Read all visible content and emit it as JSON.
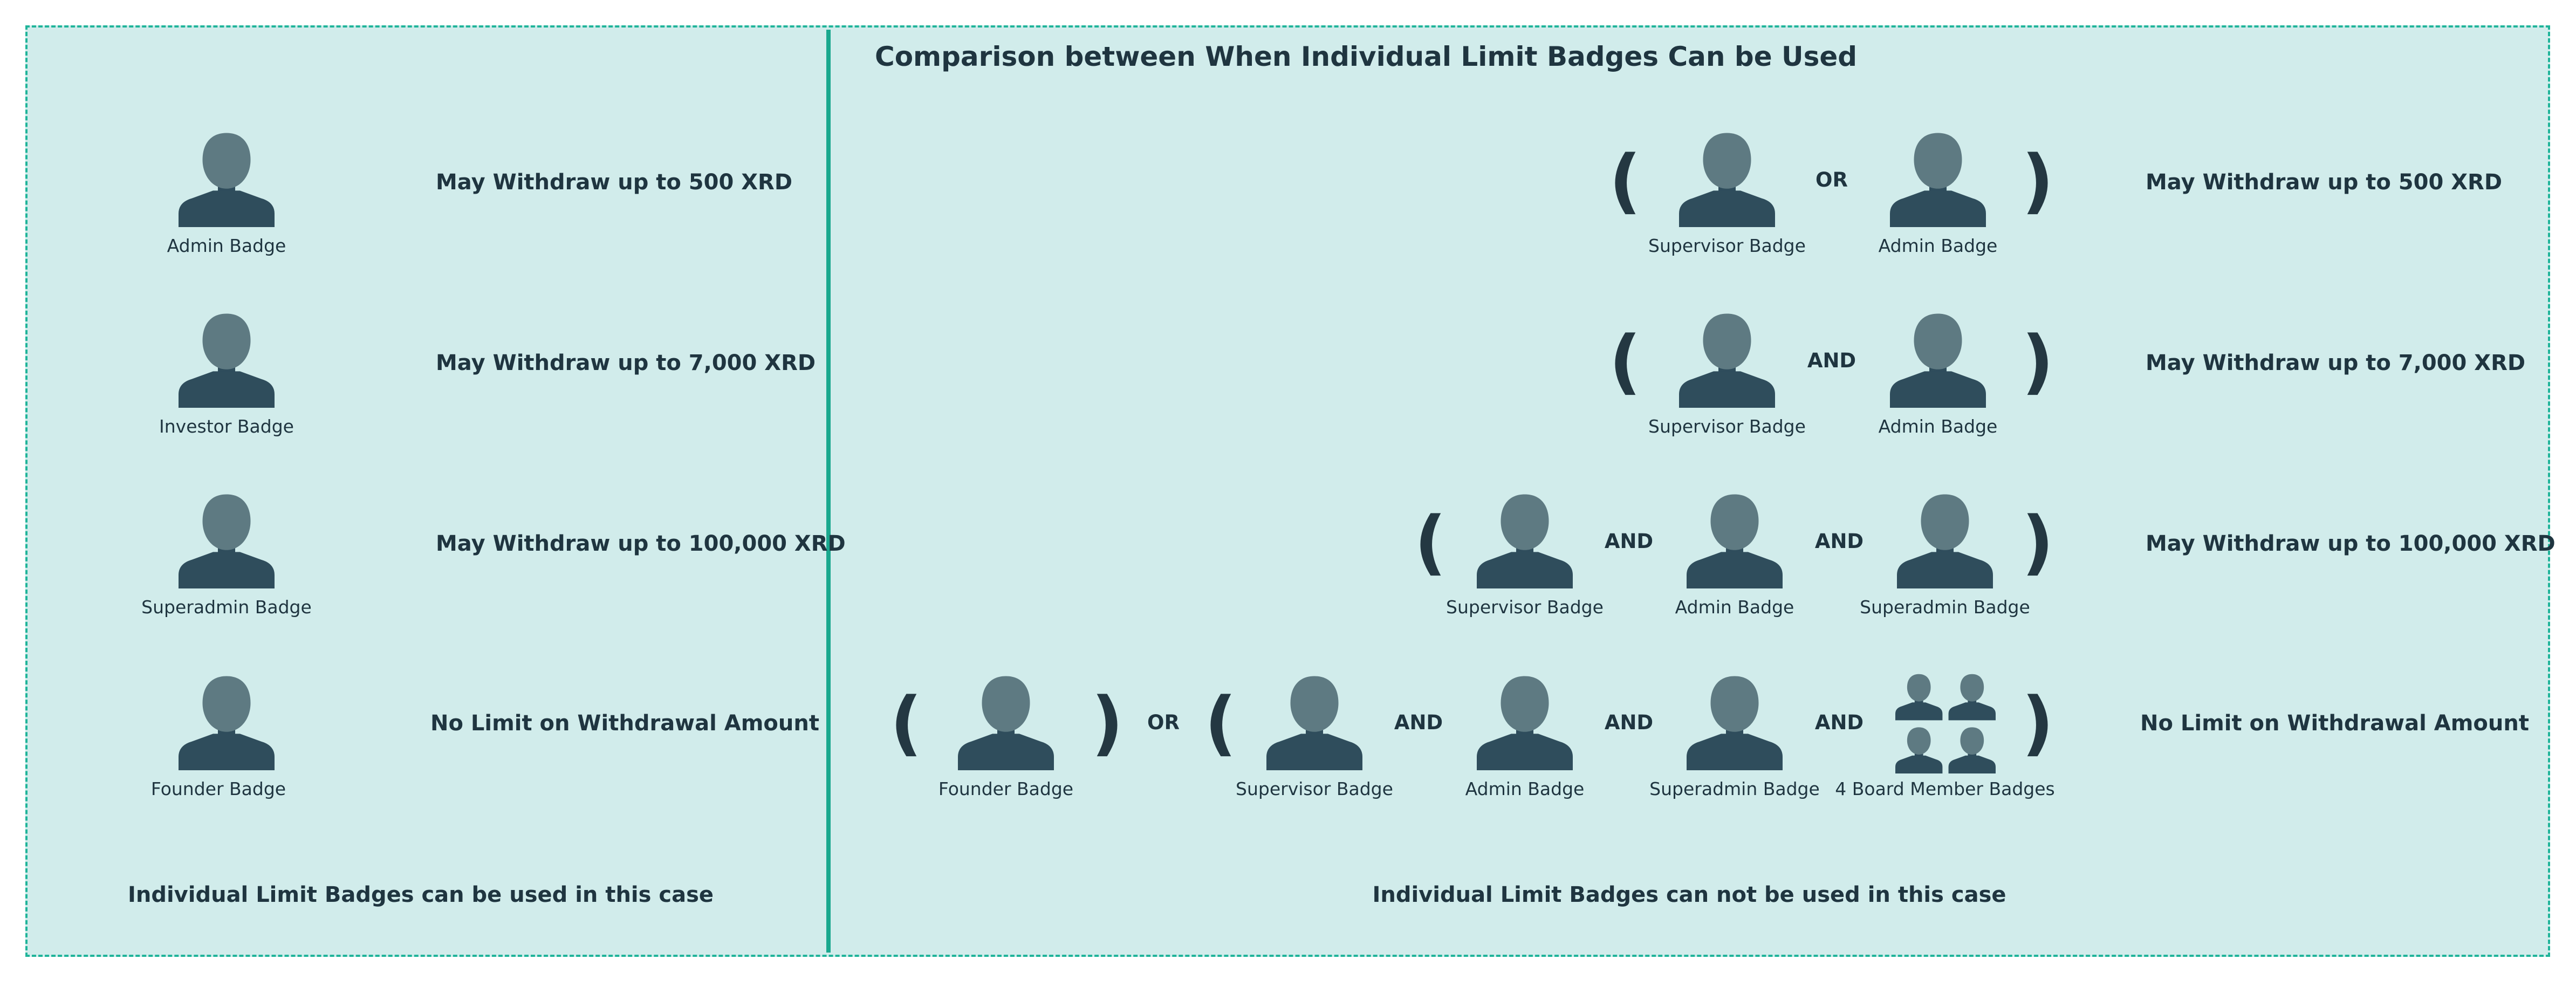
{
  "title": "Comparison between When Individual Limit Badges Can be Used",
  "left_panel": {
    "rows": [
      {
        "badge": "Admin Badge",
        "result": "May Withdraw up to 500 XRD"
      },
      {
        "badge": "Investor Badge",
        "result": "May Withdraw up to 7,000 XRD"
      },
      {
        "badge": "Superadmin Badge",
        "result": "May Withdraw up to 100,000 XRD"
      },
      {
        "badge": "Founder Badge",
        "result": "No Limit on Withdrawal Amount"
      }
    ],
    "caption": "Individual Limit Badges can be used in this case"
  },
  "right_panel": {
    "row1": {
      "badges": [
        "Supervisor Badge",
        "Admin Badge"
      ],
      "operators": [
        "OR"
      ],
      "result": "May Withdraw up to 500 XRD"
    },
    "row2": {
      "badges": [
        "Supervisor Badge",
        "Admin Badge"
      ],
      "operators": [
        "AND"
      ],
      "result": "May Withdraw up to 7,000 XRD"
    },
    "row3": {
      "badges": [
        "Supervisor Badge",
        "Admin Badge",
        "Superadmin Badge"
      ],
      "operators": [
        "AND",
        "AND"
      ],
      "result": "May Withdraw up to 100,000 XRD"
    },
    "row4": {
      "badges": [
        "Founder Badge",
        "Supervisor Badge",
        "Admin Badge",
        "Superadmin Badge",
        "4 Board Member Badges"
      ],
      "operators": [
        "OR",
        "AND",
        "AND",
        "AND"
      ],
      "result": "No Limit on Withdrawal Amount"
    },
    "caption": "Individual Limit Badges can not be used in this case"
  },
  "symbols": {
    "open_paren": "(",
    "close_paren": ")"
  },
  "colors": {
    "background": "#d1eceb",
    "border": "#20b49a",
    "divider": "#1aa88e",
    "person_head": "#5e7a82",
    "person_body": "#2f4d5c",
    "text": "#1f3540"
  },
  "icons": {
    "badge": "person-icon",
    "board": "group-of-four-icon"
  }
}
